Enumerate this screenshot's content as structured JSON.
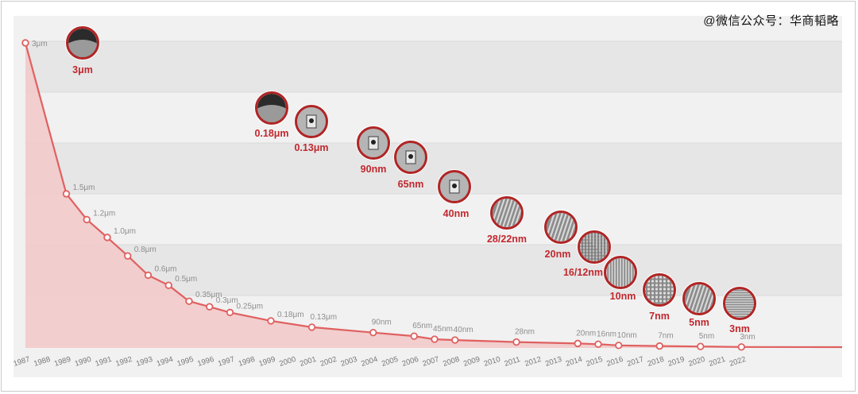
{
  "watermark": "@微信公众号：华商韬略",
  "chart_data": {
    "type": "line",
    "xlabel": "",
    "ylabel": "",
    "years": [
      "1987",
      "1988",
      "1989",
      "1990",
      "1991",
      "1992",
      "1993",
      "1994",
      "1995",
      "1996",
      "1997",
      "1998",
      "1999",
      "2000",
      "2001",
      "2002",
      "2003",
      "2004",
      "2005",
      "2006",
      "2007",
      "2008",
      "2009",
      "2010",
      "2011",
      "2012",
      "2013",
      "2014",
      "2015",
      "2016",
      "2017",
      "2018",
      "2019",
      "2020",
      "2021",
      "2022"
    ],
    "series": [
      {
        "points": [
          {
            "year": "1987",
            "label": "3μm",
            "value": 3.0
          },
          {
            "year": "1989",
            "label": "1.5μm",
            "value": 1.5
          },
          {
            "year": "1990",
            "label": "1.2μm",
            "value": 1.2
          },
          {
            "year": "1991",
            "label": "1.0μm",
            "value": 1.0
          },
          {
            "year": "1992",
            "label": "0.8μm",
            "value": 0.8
          },
          {
            "year": "1993",
            "label": "0.6μm",
            "value": 0.6
          },
          {
            "year": "1994",
            "label": "0.5μm",
            "value": 0.5
          },
          {
            "year": "1995",
            "label": "0.35μm",
            "value": 0.35
          },
          {
            "year": "1996",
            "label": "0.3μm",
            "value": 0.3
          },
          {
            "year": "1997",
            "label": "0.25μm",
            "value": 0.25
          },
          {
            "year": "1999",
            "label": "0.18μm",
            "value": 0.18
          },
          {
            "year": "2001",
            "label": "0.13μm",
            "value": 0.13
          },
          {
            "year": "2004",
            "label": "90nm",
            "value": 0.09
          },
          {
            "year": "2006",
            "label": "65nm",
            "value": 0.065
          },
          {
            "year": "2007",
            "label": "45nm",
            "value": 0.045
          },
          {
            "year": "2008",
            "label": "40nm",
            "value": 0.04
          },
          {
            "year": "2011",
            "label": "28nm",
            "value": 0.028
          },
          {
            "year": "2014",
            "label": "20nm",
            "value": 0.02
          },
          {
            "year": "2015",
            "label": "16nm",
            "value": 0.016
          },
          {
            "year": "2016",
            "label": "10nm",
            "value": 0.01
          },
          {
            "year": "2018",
            "label": "7nm",
            "value": 0.007
          },
          {
            "year": "2020",
            "label": "5nm",
            "value": 0.005
          },
          {
            "year": "2022",
            "label": "3nm",
            "value": 0.003
          }
        ]
      }
    ],
    "nodes": [
      {
        "label": "3μm",
        "texture": "dark"
      },
      {
        "label": "0.18μm",
        "texture": "dark"
      },
      {
        "label": "0.13μm",
        "texture": "gate"
      },
      {
        "label": "90nm",
        "texture": "gate"
      },
      {
        "label": "65nm",
        "texture": "gate"
      },
      {
        "label": "40nm",
        "texture": "gate"
      },
      {
        "label": "28/22nm",
        "texture": "fins"
      },
      {
        "label": "20nm",
        "texture": "fins"
      },
      {
        "label": "16/12nm",
        "texture": "grid"
      },
      {
        "label": "10nm",
        "texture": "vlines"
      },
      {
        "label": "7nm",
        "texture": "dots"
      },
      {
        "label": "5nm",
        "texture": "fins"
      },
      {
        "label": "3nm",
        "texture": "hlines"
      }
    ],
    "colors": {
      "line": "#e06060",
      "fill": "#f2c8c8",
      "ring": "#b02525",
      "label": "#c0282e",
      "point_label": "#8e8e8e"
    }
  }
}
